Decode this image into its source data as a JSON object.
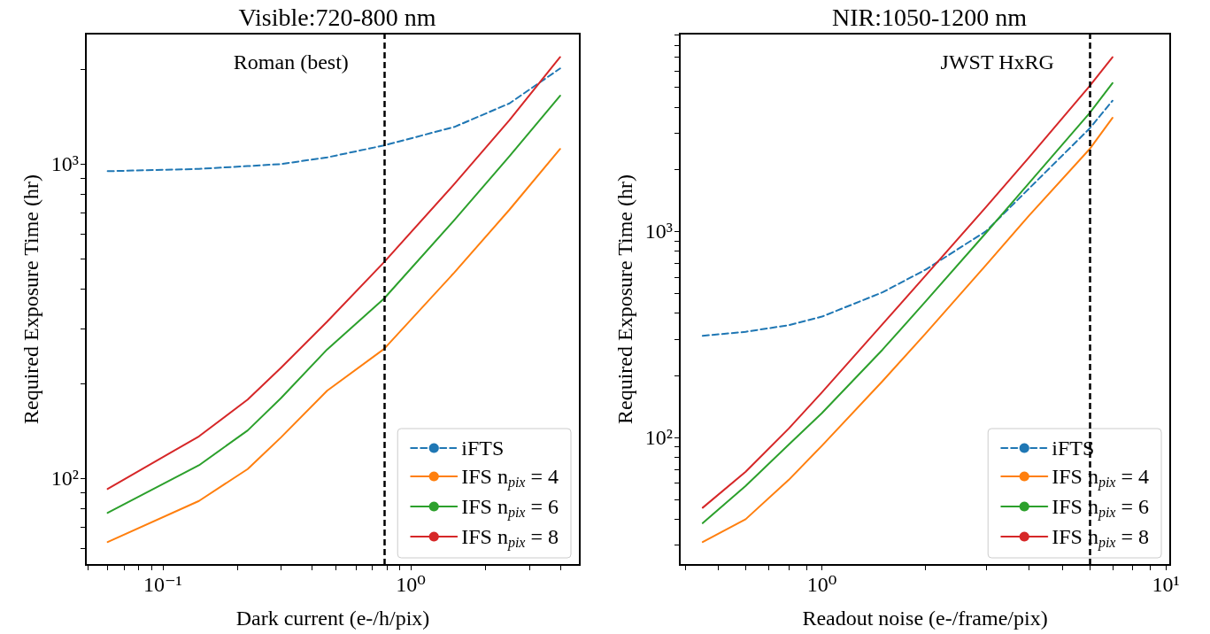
{
  "chart_data": [
    {
      "type": "line",
      "title": "Visible:720-800 nm",
      "xlabel": "Dark current (e-/h/pix)",
      "ylabel": "Required Exposure Time (hr)",
      "log": "xy",
      "grid": false,
      "legend": "bottom right",
      "x": [
        0.06,
        0.14,
        0.22,
        0.3,
        0.46,
        0.78,
        1.5,
        2.5,
        4.0
      ],
      "series": [
        {
          "name": "iFTS",
          "color": "#1f77b4",
          "line_style": "dashed",
          "values": [
            949,
            965,
            985,
            1000,
            1050,
            1146,
            1313,
            1560,
            2015
          ]
        },
        {
          "name": "IFS n$_{pix}$ = 4",
          "color": "#ff7f0e",
          "line_style": "solid",
          "values": [
            62.7,
            84.7,
            107,
            135,
            190,
            258,
            452,
            716,
            1117
          ]
        },
        {
          "name": "IFS n$_{pix}$ = 6",
          "color": "#2ca02c",
          "line_style": "solid",
          "values": [
            77.6,
            110,
            142,
            180,
            257,
            373,
            664,
            1060,
            1650
          ]
        },
        {
          "name": "IFS n$_{pix}$ = 8",
          "color": "#d62728",
          "line_style": "solid",
          "values": [
            92.5,
            136,
            178,
            225,
            315,
            487,
            865,
            1380,
            2190
          ]
        }
      ],
      "xlim": [
        0.049,
        4.8
      ],
      "ylim": [
        53,
        2600
      ],
      "xticks": [
        {
          "value": 0.05,
          "label": null
        },
        {
          "value": 0.06,
          "label": null
        },
        {
          "value": 0.07,
          "label": null
        },
        {
          "value": 0.08,
          "label": null
        },
        {
          "value": 0.09,
          "label": null
        },
        {
          "value": 0.1,
          "label": "10⁻¹"
        },
        {
          "value": 0.2,
          "label": null
        },
        {
          "value": 0.3,
          "label": null
        },
        {
          "value": 0.4,
          "label": null
        },
        {
          "value": 0.5,
          "label": null
        },
        {
          "value": 0.6,
          "label": null
        },
        {
          "value": 0.7,
          "label": null
        },
        {
          "value": 0.8,
          "label": null
        },
        {
          "value": 0.9,
          "label": null
        },
        {
          "value": 1,
          "label": "10⁰"
        },
        {
          "value": 2,
          "label": null
        },
        {
          "value": 3,
          "label": null
        },
        {
          "value": 4,
          "label": null
        }
      ],
      "yticks": [
        {
          "value": 60,
          "label": null
        },
        {
          "value": 70,
          "label": null
        },
        {
          "value": 80,
          "label": null
        },
        {
          "value": 90,
          "label": null
        },
        {
          "value": 100,
          "label": "10²"
        },
        {
          "value": 200,
          "label": null
        },
        {
          "value": 300,
          "label": null
        },
        {
          "value": 400,
          "label": null
        },
        {
          "value": 500,
          "label": null
        },
        {
          "value": 600,
          "label": null
        },
        {
          "value": 700,
          "label": null
        },
        {
          "value": 800,
          "label": null
        },
        {
          "value": 900,
          "label": null
        },
        {
          "value": 1000,
          "label": "10³"
        },
        {
          "value": 2000,
          "label": null
        }
      ],
      "ref_lines": [
        {
          "axis": "x",
          "value": 0.78,
          "label": "Roman (best)",
          "color": "#000000",
          "line_style": "dashed"
        }
      ]
    },
    {
      "type": "line",
      "title": "NIR:1050-1200 nm",
      "xlabel": "Readout noise (e-/frame/pix)",
      "ylabel": "Required Exposure Time (hr)",
      "log": "xy",
      "grid": false,
      "legend": "bottom right",
      "x": [
        0.45,
        0.6,
        0.8,
        1,
        1.5,
        2,
        3,
        4,
        6,
        7
      ],
      "series": [
        {
          "name": "iFTS",
          "color": "#1f77b4",
          "line_style": "dashed",
          "values": [
            311,
            325,
            350,
            385,
            505,
            650,
            1000,
            1610,
            3150,
            4300
          ]
        },
        {
          "name": "IFS n$_{pix}$ = 4",
          "color": "#ff7f0e",
          "line_style": "solid",
          "values": [
            31,
            40,
            62,
            91,
            187,
            318,
            685,
            1190,
            2500,
            3550
          ]
        },
        {
          "name": "IFS n$_{pix}$ = 6",
          "color": "#2ca02c",
          "line_style": "solid",
          "values": [
            38.3,
            58,
            92,
            131,
            266,
            455,
            982,
            1710,
            3740,
            5240
          ]
        },
        {
          "name": "IFS n$_{pix}$ = 8",
          "color": "#d62728",
          "line_style": "solid",
          "values": [
            45.5,
            68,
            110,
            165,
            354,
            608,
            1310,
            2280,
            5060,
            7000
          ]
        }
      ],
      "xlim": [
        0.386,
        10.3
      ],
      "ylim": [
        24,
        9100
      ],
      "xticks": [
        {
          "value": 0.4,
          "label": null
        },
        {
          "value": 0.5,
          "label": null
        },
        {
          "value": 0.6,
          "label": null
        },
        {
          "value": 0.7,
          "label": null
        },
        {
          "value": 0.8,
          "label": null
        },
        {
          "value": 0.9,
          "label": null
        },
        {
          "value": 1,
          "label": "10⁰"
        },
        {
          "value": 2,
          "label": null
        },
        {
          "value": 3,
          "label": null
        },
        {
          "value": 4,
          "label": null
        },
        {
          "value": 5,
          "label": null
        },
        {
          "value": 6,
          "label": null
        },
        {
          "value": 7,
          "label": null
        },
        {
          "value": 8,
          "label": null
        },
        {
          "value": 9,
          "label": null
        },
        {
          "value": 10,
          "label": "10¹"
        }
      ],
      "yticks": [
        {
          "value": 30,
          "label": null
        },
        {
          "value": 40,
          "label": null
        },
        {
          "value": 50,
          "label": null
        },
        {
          "value": 60,
          "label": null
        },
        {
          "value": 70,
          "label": null
        },
        {
          "value": 80,
          "label": null
        },
        {
          "value": 90,
          "label": null
        },
        {
          "value": 100,
          "label": "10²"
        },
        {
          "value": 200,
          "label": null
        },
        {
          "value": 300,
          "label": null
        },
        {
          "value": 400,
          "label": null
        },
        {
          "value": 500,
          "label": null
        },
        {
          "value": 600,
          "label": null
        },
        {
          "value": 700,
          "label": null
        },
        {
          "value": 800,
          "label": null
        },
        {
          "value": 900,
          "label": null
        },
        {
          "value": 1000,
          "label": "10³"
        },
        {
          "value": 2000,
          "label": null
        },
        {
          "value": 3000,
          "label": null
        },
        {
          "value": 4000,
          "label": null
        },
        {
          "value": 5000,
          "label": null
        },
        {
          "value": 6000,
          "label": null
        },
        {
          "value": 7000,
          "label": null
        },
        {
          "value": 8000,
          "label": null
        },
        {
          "value": 9000,
          "label": null
        }
      ],
      "ref_lines": [
        {
          "axis": "x",
          "value": 6,
          "label": "JWST HxRG",
          "color": "#000000",
          "line_style": "dashed"
        }
      ]
    }
  ]
}
